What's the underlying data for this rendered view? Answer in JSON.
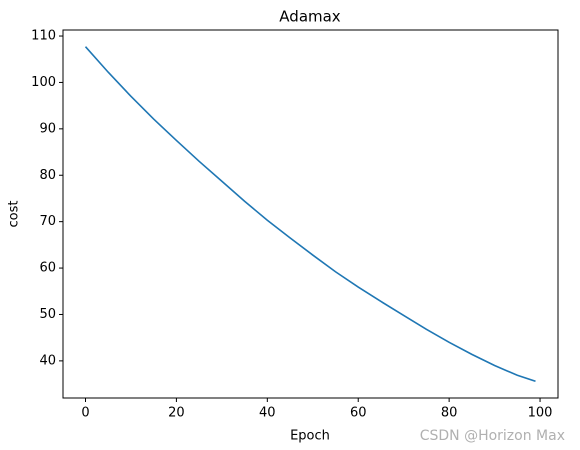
{
  "chart_data": {
    "type": "line",
    "title": "Adamax",
    "x_label": "Epoch",
    "y_label": "cost",
    "x": [
      0,
      5,
      10,
      15,
      20,
      25,
      30,
      35,
      40,
      45,
      50,
      55,
      60,
      65,
      70,
      75,
      80,
      85,
      90,
      95,
      99
    ],
    "series": [
      {
        "name": "cost",
        "color": "#1f77b4",
        "values": [
          107.7,
          102.2,
          97.0,
          92.1,
          87.5,
          83.0,
          78.7,
          74.4,
          70.3,
          66.5,
          62.8,
          59.2,
          55.9,
          52.8,
          49.8,
          46.8,
          44.0,
          41.4,
          39.0,
          36.9,
          35.6
        ]
      }
    ],
    "xlim": [
      -4.95,
      103.95
    ],
    "xticks": [
      0,
      20,
      40,
      60,
      80,
      100
    ],
    "ylim": [
      32.0,
      111.3
    ],
    "yticks": [
      40,
      50,
      60,
      70,
      80,
      90,
      100,
      110
    ],
    "grid": false,
    "watermark": "CSDN @Horizon Max"
  }
}
